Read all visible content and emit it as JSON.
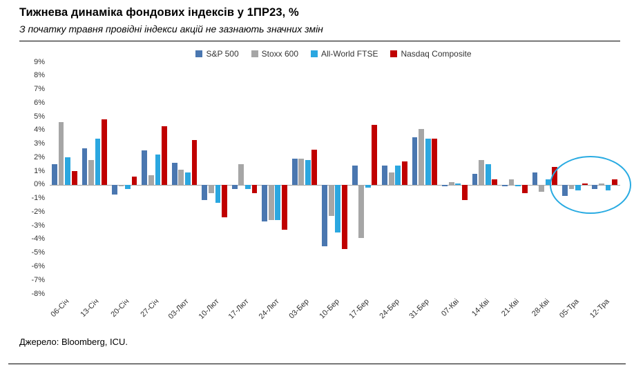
{
  "header": {
    "title": "Тижнева динаміка фондових індексів у 1ПР23, %",
    "subtitle": "З початку травня провідні індекси акцій не зазнають значних змін"
  },
  "footer": {
    "source": "Джерело: Bloomberg, ICU."
  },
  "annotation": {
    "shape": "ellipse",
    "color": "#29abe2",
    "highlights": [
      "05-Тра",
      "12-Тра"
    ]
  },
  "chart_data": {
    "type": "bar",
    "title": "Тижнева динаміка фондових індексів у 1ПР23, %",
    "xlabel": "",
    "ylabel": "",
    "ylim": [
      -8,
      9
    ],
    "ytick_step": 1,
    "ytick_format": "{v}%",
    "grid": false,
    "legend_position": "top",
    "categories": [
      "06-Січ",
      "13-Січ",
      "20-Січ",
      "27-Січ",
      "03-Лют",
      "10-Лют",
      "17-Лют",
      "24-Лют",
      "03-Бер",
      "10-Бер",
      "17-Бер",
      "24-Бер",
      "31-Бер",
      "07-Кві",
      "14-Кві",
      "21-Кві",
      "28-Кві",
      "05-Тра",
      "12-Тра"
    ],
    "series": [
      {
        "name": "S&P 500",
        "color": "#4a77b0",
        "values": [
          1.5,
          2.7,
          -0.7,
          2.5,
          1.6,
          -1.1,
          -0.3,
          -2.7,
          1.9,
          -4.5,
          1.4,
          1.4,
          3.5,
          -0.1,
          0.8,
          -0.1,
          0.9,
          -0.8,
          -0.3
        ]
      },
      {
        "name": "Stoxx 600",
        "color": "#a6a6a6",
        "values": [
          4.6,
          1.8,
          -0.1,
          0.7,
          1.1,
          -0.6,
          1.5,
          -2.6,
          1.9,
          -2.3,
          -3.9,
          0.9,
          4.1,
          0.2,
          1.8,
          0.4,
          -0.5,
          -0.3,
          0.1
        ]
      },
      {
        "name": "All-World FTSE",
        "color": "#2ba7e0",
        "values": [
          2.0,
          3.4,
          -0.3,
          2.2,
          0.9,
          -1.3,
          -0.3,
          -2.6,
          1.8,
          -3.5,
          -0.2,
          1.4,
          3.4,
          0.1,
          1.5,
          -0.1,
          0.4,
          -0.4,
          -0.4
        ]
      },
      {
        "name": "Nasdaq Composite",
        "color": "#c00000",
        "values": [
          1.0,
          4.8,
          0.6,
          4.3,
          3.3,
          -2.4,
          -0.6,
          -3.3,
          2.6,
          -4.7,
          4.4,
          1.7,
          3.4,
          -1.1,
          0.4,
          -0.6,
          1.3,
          0.1,
          0.4
        ]
      }
    ]
  }
}
